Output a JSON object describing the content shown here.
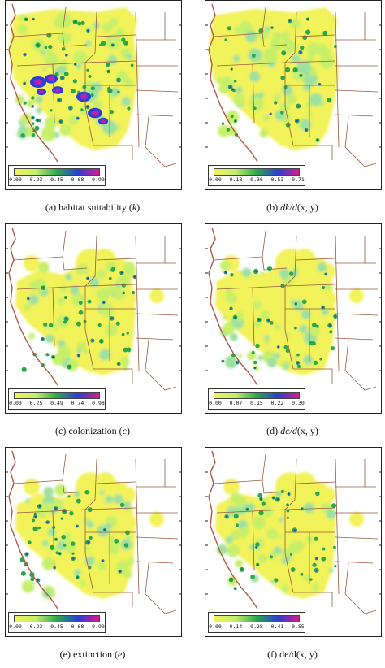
{
  "colors": {
    "state_border": "#9a5a40",
    "coast": "#b05a4a",
    "colormap": [
      "#9ee0a0",
      "#c6ef6a",
      "#f2f25a",
      "#72d64a",
      "#2aa84a",
      "#2a3fd8",
      "#8a2ad8",
      "#d81a8a"
    ]
  },
  "panels": [
    {
      "id": "a",
      "caption": {
        "prefix": "(a) habitat suitability (",
        "symbol": "k",
        "suffix": ")"
      },
      "legend": {
        "ticks": [
          "0.00",
          "0.23",
          "0.45",
          "0.68",
          "0.90"
        ],
        "gradient": [
          "#f2f25a",
          "#c6ef6a",
          "#2aa84a",
          "#2a3fd8",
          "#d81a8a"
        ]
      },
      "variant": "full",
      "hotspots": "high"
    },
    {
      "id": "b",
      "caption": {
        "prefix": "(b) ",
        "symbol": "dk/d",
        "suffix": "(x, y)"
      },
      "legend": {
        "ticks": [
          "0.00",
          "0.18",
          "0.36",
          "0.53",
          "0.71"
        ],
        "gradient": [
          "#f2f25a",
          "#c6ef6a",
          "#2aa84a",
          "#2a3fd8",
          "#d81a8a"
        ]
      },
      "variant": "full",
      "hotspots": "low"
    },
    {
      "id": "c",
      "caption": {
        "prefix": "(c) colonization (",
        "symbol": "c",
        "suffix": ")"
      },
      "legend": {
        "ticks": [
          "0.00",
          "0.25",
          "0.49",
          "0.74",
          "0.98"
        ],
        "gradient": [
          "#f2f25a",
          "#c6ef6a",
          "#2aa84a",
          "#2a3fd8",
          "#d81a8a"
        ]
      },
      "variant": "patchy",
      "hotspots": "low"
    },
    {
      "id": "d",
      "caption": {
        "prefix": "(d) ",
        "symbol": "dc/d",
        "suffix": "(x, y)"
      },
      "legend": {
        "ticks": [
          "0.00",
          "0.07",
          "0.15",
          "0.22",
          "0.30"
        ],
        "gradient": [
          "#f2f25a",
          "#c6ef6a",
          "#2aa84a",
          "#2a3fd8",
          "#d81a8a"
        ]
      },
      "variant": "patchy",
      "hotspots": "low"
    },
    {
      "id": "e",
      "caption": {
        "prefix": "(e) extinction (",
        "symbol": "e",
        "suffix": ")"
      },
      "legend": {
        "ticks": [
          "0.00",
          "0.23",
          "0.45",
          "0.68",
          "0.90"
        ],
        "gradient": [
          "#f2f25a",
          "#c6ef6a",
          "#2aa84a",
          "#2a3fd8",
          "#d81a8a"
        ]
      },
      "variant": "patchy",
      "hotspots": "mid"
    },
    {
      "id": "f",
      "caption": {
        "prefix": "(f) de/d",
        "symbol": "",
        "suffix": "(x, y)"
      },
      "legend": {
        "ticks": [
          "0.00",
          "0.14",
          "0.28",
          "0.41",
          "0.55"
        ],
        "gradient": [
          "#f2f25a",
          "#c6ef6a",
          "#2aa84a",
          "#2a3fd8",
          "#d81a8a"
        ]
      },
      "variant": "patchy",
      "hotspots": "low"
    }
  ]
}
